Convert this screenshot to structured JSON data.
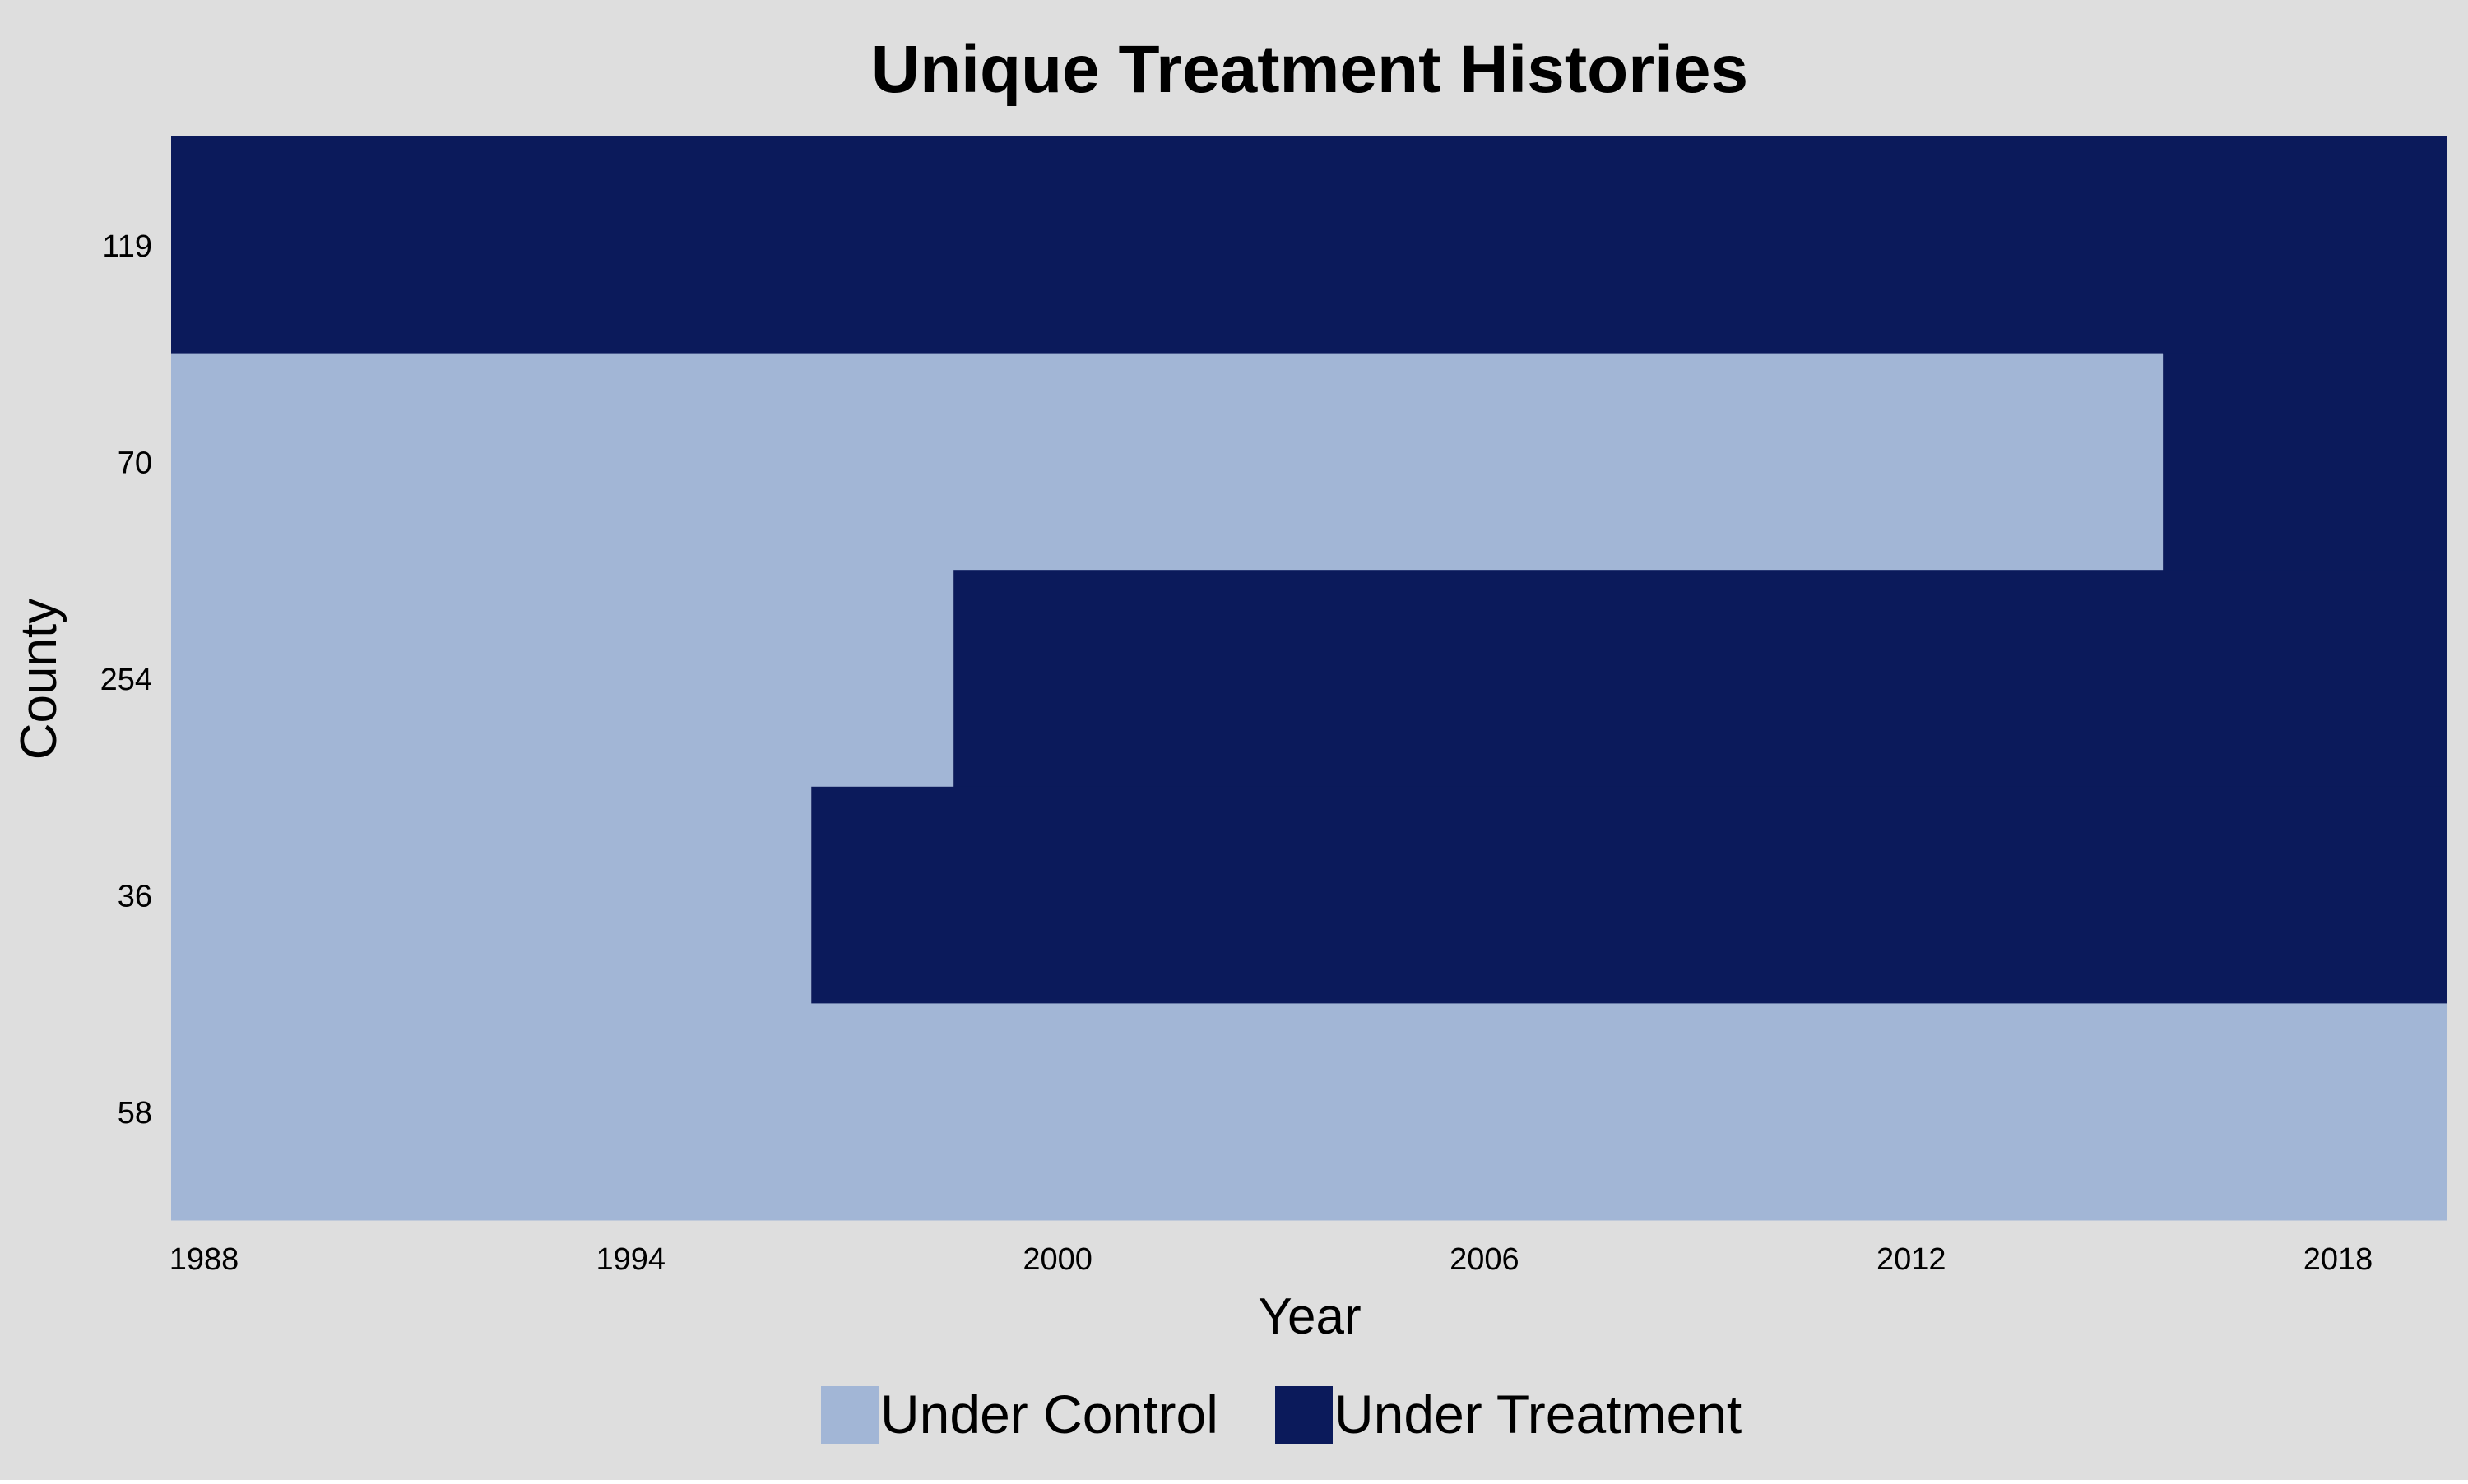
{
  "chart_data": {
    "type": "heatmap",
    "title": "Unique Treatment Histories",
    "xlabel": "Year",
    "ylabel": "County",
    "x_ticks": [
      "1988",
      "1994",
      "2000",
      "2006",
      "2012",
      "2018"
    ],
    "xlim": [
      1988,
      2020
    ],
    "units": [
      "119",
      "70",
      "254",
      "36",
      "58"
    ],
    "treatment_start_year": {
      "119": 1988,
      "70": 2016,
      "254": 1999,
      "36": 1997,
      "58": null
    },
    "legend": {
      "position": "bottom",
      "entries": [
        {
          "label": "Under Control",
          "color": "#a2b6d6"
        },
        {
          "label": "Under Treatment",
          "color": "#0b1a5b"
        }
      ]
    },
    "grid": false
  },
  "colors": {
    "background": "#dedede",
    "control": "#a2b6d6",
    "treatment": "#0b1a5b"
  }
}
